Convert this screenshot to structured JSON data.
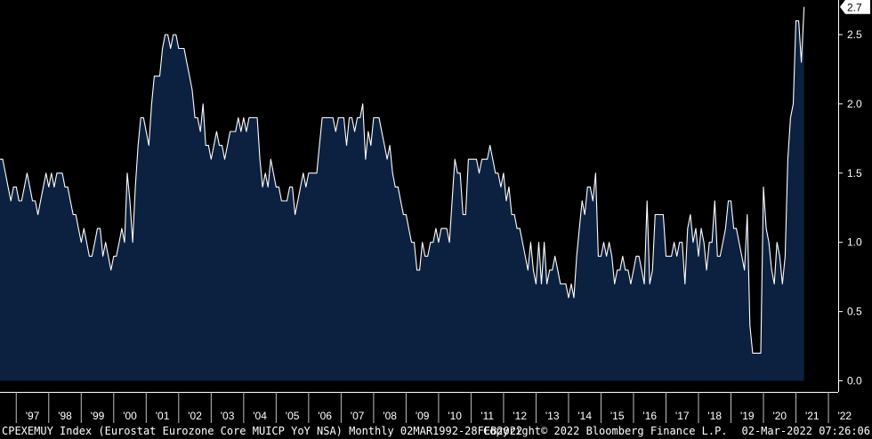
{
  "chart_data": {
    "type": "area",
    "ticker": "CPEXEMUY Index",
    "description": "(Eurostat Eurozone Core MUICP YoY NSA)",
    "frequency": "Monthly",
    "range": "02MAR1992-28FEB2022",
    "copyright": "Copyright© 2022 Bloomberg Finance L.P.",
    "timestamp": "02-Mar-2022 07:26:06",
    "last_value_label": "2.7",
    "ylim": [
      -0.08,
      2.75
    ],
    "y_ticks": [
      {
        "value": 0.0,
        "label": "0.0"
      },
      {
        "value": 0.5,
        "label": "0.5"
      },
      {
        "value": 1.0,
        "label": "1.0"
      },
      {
        "value": 1.5,
        "label": "1.5"
      },
      {
        "value": 2.0,
        "label": "2.0"
      },
      {
        "value": 2.5,
        "label": "2.5"
      }
    ],
    "x_ticks": [
      "'97",
      "'98",
      "'99",
      "'00",
      "'01",
      "'02",
      "'03",
      "'04",
      "'05",
      "'06",
      "'07",
      "'08",
      "'09",
      "'10",
      "'11",
      "'12",
      "'13",
      "'14",
      "'15",
      "'16",
      "'17",
      "'18",
      "'19",
      "'20",
      "'21",
      "'22"
    ],
    "x_tick_years": [
      1997,
      1998,
      1999,
      2000,
      2001,
      2002,
      2003,
      2004,
      2005,
      2006,
      2007,
      2008,
      2009,
      2010,
      2011,
      2012,
      2013,
      2014,
      2015,
      2016,
      2017,
      2018,
      2019,
      2020,
      2021,
      2022
    ],
    "xlim": [
      1996.5,
      2022.3
    ],
    "colors": {
      "area": "#0c2140",
      "line": "#ffffff",
      "background": "#000000",
      "axis": "#ffffff"
    },
    "series": [
      {
        "start": "1996-07",
        "values": [
          1.6,
          1.6,
          1.5,
          1.4,
          1.3,
          1.4,
          1.4,
          1.3,
          1.3,
          1.4,
          1.5,
          1.4,
          1.3,
          1.3,
          1.2,
          1.3,
          1.4,
          1.5,
          1.4,
          1.5,
          1.4,
          1.5,
          1.5,
          1.5,
          1.4,
          1.4,
          1.3,
          1.2,
          1.2,
          1.1,
          1.0,
          1.1,
          1.0,
          0.9,
          0.9,
          1.0,
          1.1,
          1.1,
          0.9,
          1.0,
          0.9,
          0.8,
          0.9,
          0.9,
          1.0,
          1.1,
          1.0,
          1.5,
          1.3,
          1.0,
          1.4,
          1.7,
          1.9,
          1.9,
          1.8,
          1.7,
          2.0,
          2.2,
          2.2,
          2.2,
          2.4,
          2.5,
          2.5,
          2.4,
          2.5,
          2.5,
          2.4,
          2.4,
          2.4,
          2.3,
          2.2,
          2.1,
          1.9,
          1.9,
          1.8,
          2.0,
          1.7,
          1.7,
          1.6,
          1.7,
          1.8,
          1.7,
          1.7,
          1.6,
          1.7,
          1.8,
          1.8,
          1.8,
          1.9,
          1.8,
          1.9,
          1.8,
          1.9,
          1.9,
          1.9,
          1.9,
          1.6,
          1.4,
          1.5,
          1.4,
          1.6,
          1.5,
          1.4,
          1.4,
          1.3,
          1.3,
          1.3,
          1.4,
          1.4,
          1.2,
          1.3,
          1.4,
          1.5,
          1.4,
          1.5,
          1.5,
          1.5,
          1.5,
          1.7,
          1.9,
          1.9,
          1.9,
          1.9,
          1.9,
          1.8,
          1.9,
          1.9,
          1.9,
          1.7,
          1.9,
          1.9,
          1.8,
          1.9,
          1.9,
          2.0,
          1.6,
          1.8,
          1.7,
          1.9,
          1.9,
          1.9,
          1.8,
          1.7,
          1.6,
          1.7,
          1.5,
          1.4,
          1.4,
          1.3,
          1.2,
          1.2,
          1.1,
          1.0,
          1.0,
          0.8,
          0.8,
          1.0,
          0.9,
          0.9,
          1.0,
          1.0,
          1.1,
          1.0,
          1.1,
          1.1,
          1.1,
          1.0,
          1.3,
          1.6,
          1.5,
          1.5,
          1.2,
          1.2,
          1.6,
          1.6,
          1.6,
          1.6,
          1.5,
          1.6,
          1.6,
          1.6,
          1.7,
          1.6,
          1.5,
          1.5,
          1.4,
          1.5,
          1.3,
          1.4,
          1.2,
          1.2,
          1.1,
          1.1,
          1.0,
          0.9,
          0.8,
          1.0,
          0.8,
          0.7,
          1.0,
          0.7,
          1.0,
          0.7,
          0.8,
          0.8,
          0.9,
          0.8,
          0.7,
          0.7,
          0.7,
          0.6,
          0.7,
          0.6,
          0.9,
          1.1,
          1.3,
          1.2,
          1.4,
          1.4,
          1.3,
          1.5,
          0.9,
          0.9,
          1.0,
          0.9,
          1.0,
          0.9,
          0.7,
          0.8,
          0.8,
          0.9,
          0.8,
          0.8,
          0.7,
          0.8,
          0.9,
          0.9,
          0.8,
          0.7,
          1.3,
          0.7,
          0.8,
          1.2,
          1.2,
          1.2,
          1.2,
          0.9,
          0.9,
          0.9,
          1.0,
          0.9,
          1.0,
          1.0,
          0.7,
          1.1,
          1.2,
          1.0,
          1.1,
          0.9,
          1.1,
          1.0,
          0.8,
          1.0,
          1.0,
          1.3,
          0.9,
          0.9,
          1.0,
          1.1,
          1.3,
          1.3,
          1.1,
          1.1,
          1.0,
          0.9,
          0.8,
          1.2,
          0.4,
          0.2,
          0.2,
          0.2,
          0.2,
          1.4,
          1.1,
          1.0,
          0.8,
          0.7,
          1.0,
          0.9,
          0.7,
          0.9,
          1.6,
          1.9,
          2.0,
          2.6,
          2.6,
          2.3,
          2.7
        ]
      }
    ]
  },
  "footer": {
    "left": "CPEXEMUY Index (Eurostat Eurozone Core MUICP YoY NSA)  Monthly 02MAR1992-28FEB2022",
    "center": "Copyright© 2022 Bloomberg Finance L.P.",
    "right": "02-Mar-2022 07:26:06"
  }
}
